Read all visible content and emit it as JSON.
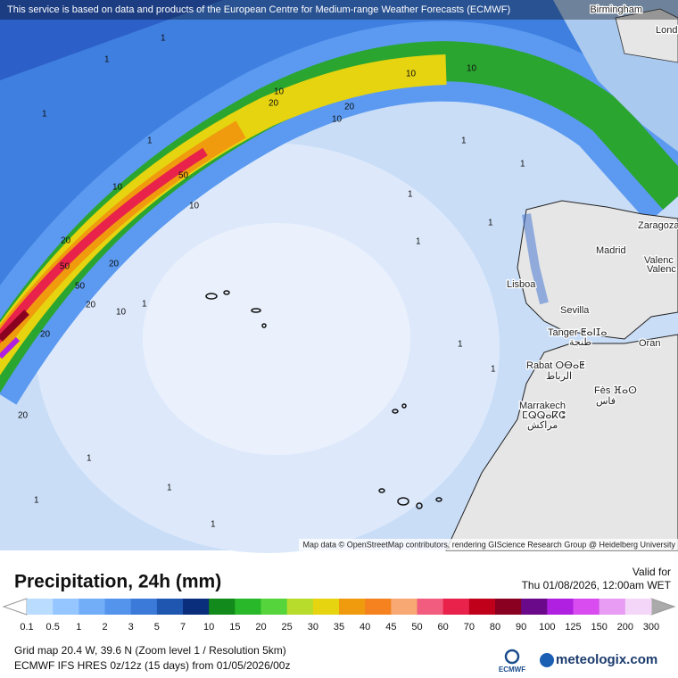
{
  "map": {
    "attribution_top": "This service is based on data and products of the European Centre for Medium-range Weather Forecasts (ECMWF)",
    "attribution_bottom": "Map data © OpenStreetMap contributors, rendering GIScience Research Group @ Heidelberg University",
    "places": [
      "Birmingham",
      "Lond",
      "Zaragoza",
      "Madrid",
      "Valenc",
      "Valenc",
      "Lisboa",
      "Sevilla",
      "Tanger ⵟⴰⵏⵊⴰ",
      "طنجة",
      "Oran",
      "Rabat ⵔⴱⴰⵟ",
      "الرباط",
      "Fès ⴼⴰⵙ",
      "فاس",
      "Marrakech",
      "ⵎⵕⵕⴰⴽⵛ",
      "مراكش"
    ],
    "contour_labels": [
      "10",
      "10",
      "10",
      "20",
      "20",
      "10",
      "50",
      "10",
      "20",
      "20",
      "50",
      "20",
      "10",
      "50",
      "20",
      "10",
      "20",
      "1",
      "1",
      "1",
      "1",
      "1",
      "1",
      "1",
      "1",
      "1",
      "1",
      "1",
      "1",
      "1",
      "1",
      "1",
      "1"
    ]
  },
  "legend": {
    "title": "Precipitation, 24h (mm)",
    "valid_label": "Valid for",
    "valid_time": "Thu 01/08/2026, 12:00am WET",
    "ticks": [
      0.1,
      0.5,
      1,
      2,
      3,
      5,
      7,
      10,
      15,
      20,
      25,
      30,
      35,
      40,
      45,
      50,
      60,
      70,
      80,
      90,
      100,
      125,
      150,
      200,
      300
    ],
    "colors": [
      "#b9dcff",
      "#95c6ff",
      "#72aef8",
      "#5494ec",
      "#3c7ad9",
      "#1f56b0",
      "#0a2d7c",
      "#138a1c",
      "#28b82a",
      "#55d43b",
      "#b8dc2c",
      "#e5d40f",
      "#f09a0e",
      "#f5821e",
      "#f7a873",
      "#f25c7e",
      "#e8224a",
      "#c0001a",
      "#8a0020",
      "#6a0a8a",
      "#b020e0",
      "#d84cf0",
      "#e89cf3",
      "#f4d6f8"
    ],
    "grid_info": "Grid map 20.4 W, 39.6 N (Zoom level 1 / Resolution 5km)",
    "model_info": "ECMWF IFS HRES 0z/12z (15 days) from  01/05/2026/00z",
    "ecmwf_logo": "ECMWF",
    "brand": "meteologix.com"
  }
}
